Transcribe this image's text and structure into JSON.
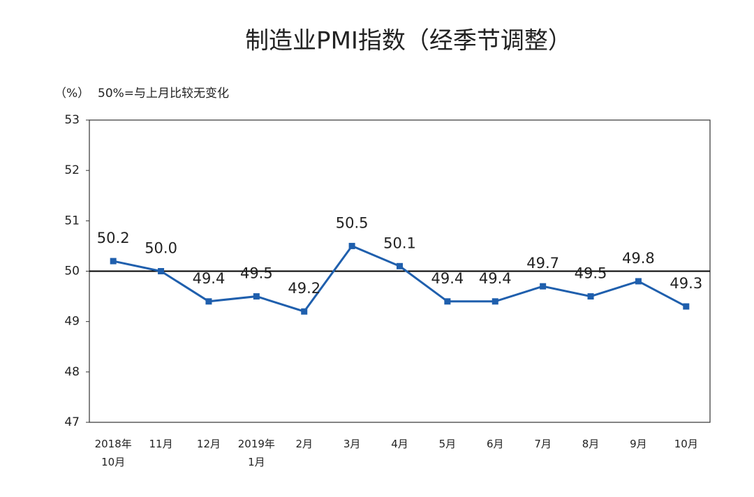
{
  "chart_data": {
    "type": "line",
    "title": "制造业PMI指数（经季节调整）",
    "y_unit": "（%）",
    "annotation": "50%=与上月比较无变化",
    "categories": [
      "2018年\n10月",
      "11月",
      "12月",
      "2019年\n1月",
      "2月",
      "3月",
      "4月",
      "5月",
      "6月",
      "7月",
      "8月",
      "9月",
      "10月"
    ],
    "series": [
      {
        "name": "制造业PMI",
        "color": "#1f5fad",
        "values": [
          50.2,
          50.0,
          49.4,
          49.5,
          49.2,
          50.5,
          50.1,
          49.4,
          49.4,
          49.7,
          49.5,
          49.8,
          49.3
        ],
        "value_labels": [
          "50.2",
          "50.0",
          "49.4",
          "49.5",
          "49.2",
          "50.5",
          "50.1",
          "49.4",
          "49.4",
          "49.7",
          "49.5",
          "49.8",
          "49.3"
        ]
      }
    ],
    "ylim": [
      47,
      53
    ],
    "yticks": [
      47,
      48,
      49,
      50,
      51,
      52,
      53
    ],
    "reference_line": 50
  }
}
